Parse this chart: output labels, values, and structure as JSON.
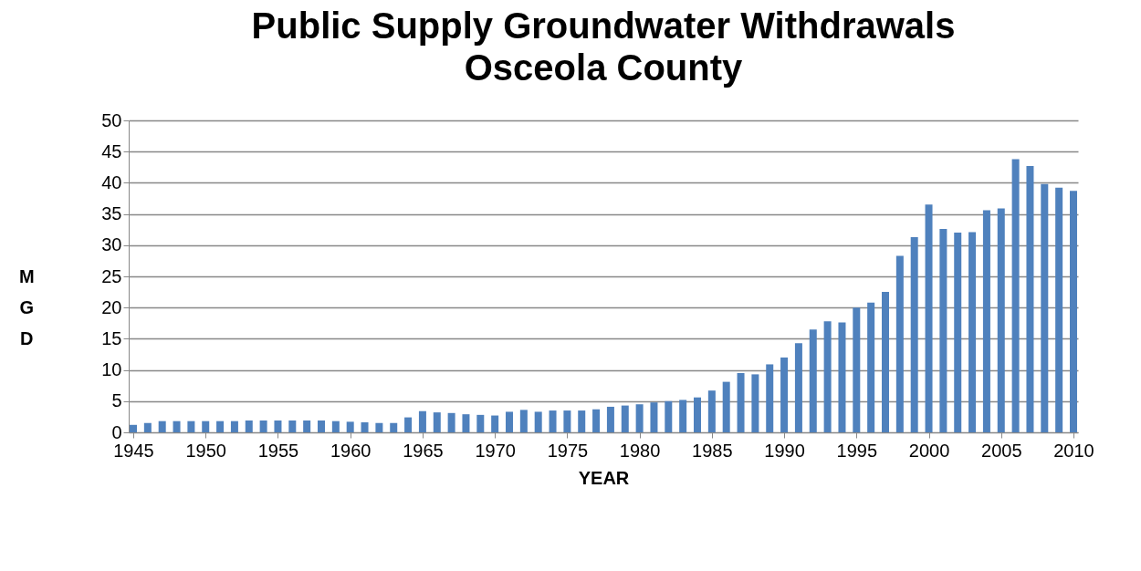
{
  "chart_data": {
    "type": "bar",
    "title": "Public Supply Groundwater Withdrawals\nOsceola County",
    "xlabel": "YEAR",
    "ylabel": "MGD",
    "color": "#4f81bd",
    "x": [
      1945,
      1946,
      1947,
      1948,
      1949,
      1950,
      1951,
      1952,
      1953,
      1954,
      1955,
      1956,
      1957,
      1958,
      1959,
      1960,
      1961,
      1962,
      1963,
      1964,
      1965,
      1966,
      1967,
      1968,
      1969,
      1970,
      1971,
      1972,
      1973,
      1974,
      1975,
      1976,
      1977,
      1978,
      1979,
      1980,
      1981,
      1982,
      1983,
      1984,
      1985,
      1986,
      1987,
      1988,
      1989,
      1990,
      1991,
      1992,
      1993,
      1994,
      1995,
      1996,
      1997,
      1998,
      1999,
      2000,
      2001,
      2002,
      2003,
      2004,
      2005,
      2006,
      2007,
      2008,
      2009,
      2010
    ],
    "values": [
      1.2,
      1.5,
      1.8,
      1.8,
      1.8,
      1.8,
      1.8,
      1.8,
      1.9,
      1.9,
      1.9,
      1.9,
      1.9,
      1.9,
      1.8,
      1.7,
      1.6,
      1.5,
      1.5,
      2.4,
      3.4,
      3.2,
      3.1,
      2.9,
      2.8,
      2.7,
      3.3,
      3.6,
      3.3,
      3.5,
      3.5,
      3.5,
      3.7,
      4.1,
      4.3,
      4.5,
      4.8,
      5.0,
      5.2,
      5.6,
      6.7,
      8.1,
      9.5,
      9.3,
      10.9,
      12.0,
      14.3,
      16.5,
      17.8,
      17.6,
      20.0,
      20.8,
      22.5,
      28.3,
      31.3,
      36.5,
      32.6,
      32.0,
      32.1,
      35.6,
      35.9,
      43.8,
      42.7,
      39.8,
      39.2,
      38.7
    ],
    "xlim": [
      1945,
      2010
    ],
    "xticks": [
      1945,
      1950,
      1955,
      1960,
      1965,
      1970,
      1975,
      1980,
      1985,
      1990,
      1995,
      2000,
      2005,
      2010
    ],
    "ylim": [
      0,
      50
    ],
    "yticks": [
      0,
      5,
      10,
      15,
      20,
      25,
      30,
      35,
      40,
      45,
      50
    ],
    "grid": "y"
  }
}
